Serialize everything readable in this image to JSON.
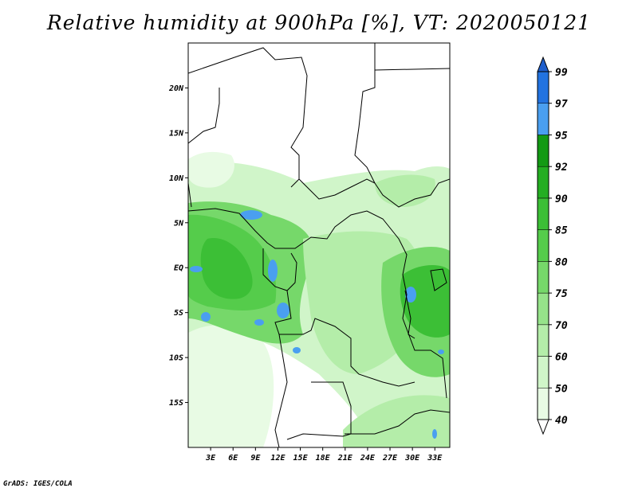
{
  "title": "Relative humidity at 900hPa [%], VT: 2020050121",
  "credit": "GrADS: IGES/COLA",
  "map": {
    "lon_range": [
      0,
      35
    ],
    "lat_range": [
      -20,
      25
    ],
    "lat_ticks": [
      {
        "v": 20,
        "label": "20N"
      },
      {
        "v": 15,
        "label": "15N"
      },
      {
        "v": 10,
        "label": "10N"
      },
      {
        "v": 5,
        "label": "5N"
      },
      {
        "v": 0,
        "label": "EQ"
      },
      {
        "v": -5,
        "label": "5S"
      },
      {
        "v": -10,
        "label": "10S"
      },
      {
        "v": -15,
        "label": "15S"
      }
    ],
    "lon_ticks": [
      {
        "v": 3,
        "label": "3E"
      },
      {
        "v": 6,
        "label": "6E"
      },
      {
        "v": 9,
        "label": "9E"
      },
      {
        "v": 12,
        "label": "12E"
      },
      {
        "v": 15,
        "label": "15E"
      },
      {
        "v": 18,
        "label": "18E"
      },
      {
        "v": 21,
        "label": "21E"
      },
      {
        "v": 24,
        "label": "24E"
      },
      {
        "v": 27,
        "label": "27E"
      },
      {
        "v": 30,
        "label": "30E"
      },
      {
        "v": 33,
        "label": "33E"
      }
    ]
  },
  "colorbar": {
    "levels": [
      "40",
      "50",
      "60",
      "70",
      "75",
      "80",
      "85",
      "90",
      "92",
      "95",
      "97",
      "99"
    ],
    "colors": [
      "#ffffff",
      "#e8fbe4",
      "#d0f5c9",
      "#b4eda9",
      "#96e38a",
      "#76d86a",
      "#55cc4b",
      "#3cbf36",
      "#24ae22",
      "#139a14",
      "#4a9ff0",
      "#2273e0",
      "#1f5fcc"
    ]
  }
}
